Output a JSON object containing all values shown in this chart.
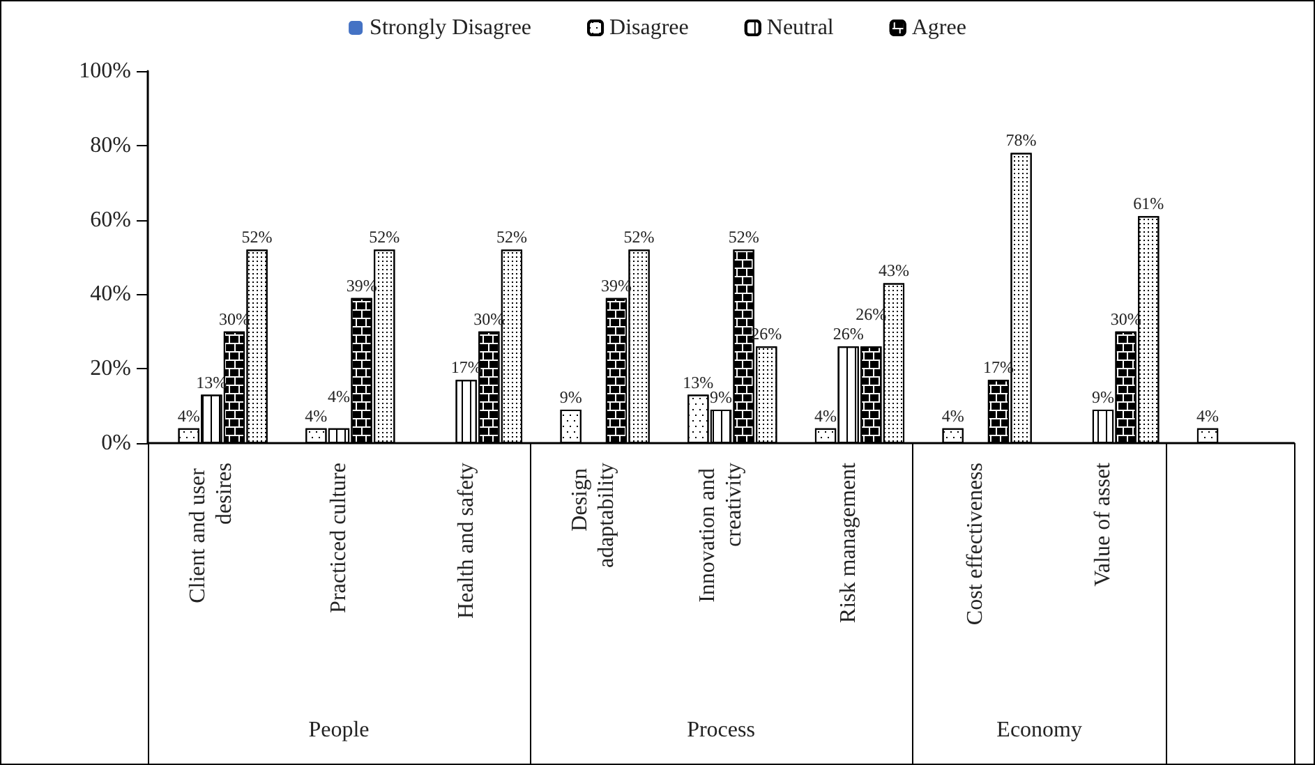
{
  "chart_data": {
    "type": "bar",
    "categories": [
      "Client and user desires",
      "Practiced culture",
      "Health and safety",
      "Design adaptability",
      "Innovation and creativity",
      "Risk management",
      "Cost effectiveness",
      "Value of asset",
      null
    ],
    "series": [
      {
        "name": "Strongly Disagree",
        "color": "#4472c4",
        "values": [
          null,
          null,
          null,
          null,
          null,
          null,
          null,
          null,
          null
        ]
      },
      {
        "name": "Disagree",
        "color": "#000000",
        "values": [
          4,
          4,
          null,
          9,
          13,
          4,
          4,
          null,
          4
        ],
        "value_labels": [
          "4%",
          "4%",
          null,
          "9%",
          "13%",
          "4%",
          "4%",
          null,
          "4%"
        ]
      },
      {
        "name": "Neutral",
        "color": "#000000",
        "values": [
          13,
          4,
          17,
          null,
          9,
          26,
          null,
          9,
          null
        ],
        "value_labels": [
          "13%",
          "4%",
          "17%",
          null,
          "9%",
          "26%",
          null,
          "9%",
          null
        ]
      },
      {
        "name": "Agree",
        "color": "#000000",
        "values": [
          30,
          39,
          30,
          39,
          52,
          26,
          17,
          30,
          null
        ],
        "value_labels": [
          "30%",
          "39%",
          "30%",
          "39%",
          "52%",
          "26%",
          "17%",
          "30%",
          null
        ]
      },
      {
        "color": "#000000",
        "values": [
          52,
          52,
          52,
          52,
          26,
          43,
          78,
          61,
          null
        ],
        "value_labels": [
          "52%",
          "52%",
          "52%",
          "52%",
          "26%",
          "43%",
          "78%",
          "61%",
          null
        ]
      }
    ],
    "ylim": [
      0,
      100
    ],
    "yticks": [
      {
        "value": 0,
        "label": "0%"
      },
      {
        "value": 20,
        "label": "20%"
      },
      {
        "value": 40,
        "label": "40%"
      },
      {
        "value": 60,
        "label": "60%"
      },
      {
        "value": 80,
        "label": "80%"
      },
      {
        "value": 100,
        "label": "100%"
      }
    ],
    "annotations": [
      "People",
      "Process",
      "Economy"
    ],
    "legend": "top",
    "grid": false
  }
}
